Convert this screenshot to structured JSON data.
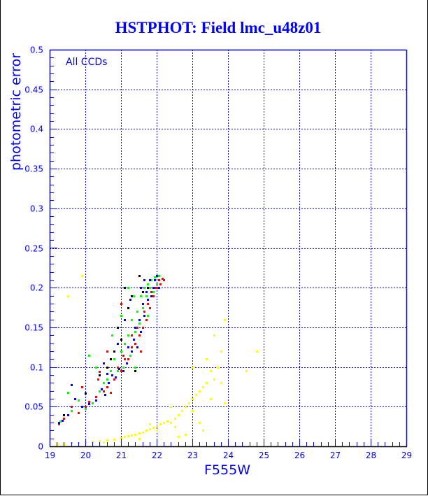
{
  "chart_data": {
    "type": "scatter",
    "title": "HSTPHOT: Field lmc_u48z01",
    "xlabel": "F555W",
    "ylabel": "photometric error",
    "annotation": "All CCDs",
    "xlim": [
      19,
      29
    ],
    "ylim": [
      0,
      0.5
    ],
    "x_ticks": [
      19,
      20,
      21,
      22,
      23,
      24,
      25,
      26,
      27,
      28,
      29
    ],
    "x_tick_labels": [
      "19",
      "20",
      "21",
      "22",
      "23",
      "24",
      "25",
      "26",
      "27",
      "28",
      "29"
    ],
    "y_ticks": [
      0,
      0.05,
      0.1,
      0.15,
      0.2,
      0.25,
      0.3,
      0.35,
      0.4,
      0.45,
      0.5
    ],
    "y_tick_labels": [
      "0",
      "0.05",
      "0.1",
      "0.15",
      "0.2",
      "0.25",
      "0.3",
      "0.35",
      "0.4",
      "0.45",
      "0.5"
    ],
    "grid": true,
    "colors": {
      "axis": "#0000ff",
      "grid": "#0000ff",
      "bottom_axis": "#000000"
    },
    "series": [
      {
        "name": "red",
        "color": "#ff0000",
        "points": [
          [
            19.25,
            0.028
          ],
          [
            19.4,
            0.035
          ],
          [
            19.6,
            0.05
          ],
          [
            19.8,
            0.042
          ],
          [
            20.0,
            0.05
          ],
          [
            20.1,
            0.056
          ],
          [
            20.3,
            0.063
          ],
          [
            20.35,
            0.085
          ],
          [
            20.5,
            0.07
          ],
          [
            20.6,
            0.075
          ],
          [
            20.7,
            0.068
          ],
          [
            20.8,
            0.085
          ],
          [
            20.9,
            0.1
          ],
          [
            21.0,
            0.095
          ],
          [
            21.05,
            0.115
          ],
          [
            21.1,
            0.11
          ],
          [
            21.2,
            0.11
          ],
          [
            21.3,
            0.125
          ],
          [
            21.3,
            0.14
          ],
          [
            21.4,
            0.13
          ],
          [
            21.45,
            0.15
          ],
          [
            21.5,
            0.14
          ],
          [
            21.55,
            0.12
          ],
          [
            21.6,
            0.15
          ],
          [
            21.65,
            0.17
          ],
          [
            21.7,
            0.16
          ],
          [
            21.75,
            0.18
          ],
          [
            21.8,
            0.175
          ],
          [
            21.85,
            0.195
          ],
          [
            21.9,
            0.19
          ],
          [
            21.95,
            0.2
          ],
          [
            22.0,
            0.2
          ],
          [
            22.05,
            0.21
          ],
          [
            22.1,
            0.205
          ],
          [
            22.15,
            0.212
          ],
          [
            22.2,
            0.21
          ],
          [
            21.0,
            0.18
          ],
          [
            20.6,
            0.12
          ],
          [
            19.9,
            0.075
          ],
          [
            20.4,
            0.094
          ]
        ]
      },
      {
        "name": "green",
        "color": "#00ff00",
        "points": [
          [
            19.3,
            0.032
          ],
          [
            19.6,
            0.045
          ],
          [
            19.8,
            0.058
          ],
          [
            20.0,
            0.048
          ],
          [
            20.2,
            0.055
          ],
          [
            20.4,
            0.07
          ],
          [
            20.5,
            0.08
          ],
          [
            20.6,
            0.085
          ],
          [
            20.7,
            0.095
          ],
          [
            20.8,
            0.11
          ],
          [
            20.9,
            0.095
          ],
          [
            21.0,
            0.12
          ],
          [
            21.05,
            0.1
          ],
          [
            21.1,
            0.13
          ],
          [
            21.2,
            0.14
          ],
          [
            21.25,
            0.115
          ],
          [
            21.3,
            0.16
          ],
          [
            21.4,
            0.145
          ],
          [
            21.45,
            0.17
          ],
          [
            21.5,
            0.155
          ],
          [
            21.55,
            0.19
          ],
          [
            21.6,
            0.175
          ],
          [
            21.65,
            0.2
          ],
          [
            21.7,
            0.19
          ],
          [
            21.75,
            0.205
          ],
          [
            21.8,
            0.2
          ],
          [
            21.85,
            0.21
          ],
          [
            21.9,
            0.195
          ],
          [
            21.95,
            0.213
          ],
          [
            22.0,
            0.205
          ],
          [
            22.05,
            0.215
          ],
          [
            21.2,
            0.2
          ],
          [
            20.1,
            0.115
          ],
          [
            20.3,
            0.1
          ],
          [
            19.5,
            0.068
          ],
          [
            21.0,
            0.165
          ],
          [
            21.35,
            0.19
          ],
          [
            20.75,
            0.14
          ],
          [
            21.4,
            0.1
          ],
          [
            21.75,
            0.165
          ]
        ]
      },
      {
        "name": "blue",
        "color": "#0000ff",
        "points": [
          [
            19.25,
            0.03
          ],
          [
            19.35,
            0.033
          ],
          [
            19.5,
            0.04
          ],
          [
            19.7,
            0.06
          ],
          [
            19.9,
            0.05
          ],
          [
            20.1,
            0.054
          ],
          [
            20.3,
            0.058
          ],
          [
            20.45,
            0.072
          ],
          [
            20.55,
            0.065
          ],
          [
            20.65,
            0.08
          ],
          [
            20.75,
            0.09
          ],
          [
            20.85,
            0.087
          ],
          [
            20.95,
            0.098
          ],
          [
            21.05,
            0.095
          ],
          [
            21.15,
            0.105
          ],
          [
            21.2,
            0.125
          ],
          [
            21.3,
            0.12
          ],
          [
            21.35,
            0.135
          ],
          [
            21.4,
            0.15
          ],
          [
            21.45,
            0.125
          ],
          [
            21.5,
            0.16
          ],
          [
            21.55,
            0.145
          ],
          [
            21.6,
            0.18
          ],
          [
            21.65,
            0.165
          ],
          [
            21.7,
            0.195
          ],
          [
            21.75,
            0.185
          ],
          [
            21.8,
            0.21
          ],
          [
            21.85,
            0.19
          ],
          [
            21.9,
            0.2
          ],
          [
            21.95,
            0.21
          ],
          [
            22.0,
            0.215
          ],
          [
            22.05,
            0.2
          ],
          [
            21.1,
            0.16
          ],
          [
            20.9,
            0.13
          ],
          [
            20.5,
            0.105
          ],
          [
            19.6,
            0.078
          ],
          [
            20.6,
            0.092
          ],
          [
            21.55,
            0.2
          ],
          [
            21.25,
            0.185
          ],
          [
            21.65,
            0.21
          ]
        ]
      },
      {
        "name": "black",
        "color": "#000000",
        "points": [
          [
            19.4,
            0.04
          ],
          [
            20.0,
            0.067
          ],
          [
            20.4,
            0.09
          ],
          [
            20.6,
            0.1
          ],
          [
            20.8,
            0.12
          ],
          [
            20.9,
            0.15
          ],
          [
            21.0,
            0.135
          ],
          [
            21.1,
            0.2
          ],
          [
            21.2,
            0.175
          ],
          [
            21.3,
            0.19
          ],
          [
            21.5,
            0.215
          ],
          [
            21.6,
            0.195
          ],
          [
            21.4,
            0.095
          ],
          [
            20.7,
            0.11
          ],
          [
            21.75,
            0.2
          ]
        ]
      },
      {
        "name": "yellow",
        "color": "#ffff00",
        "points": [
          [
            19.2,
            0.003
          ],
          [
            19.4,
            0.003
          ],
          [
            19.6,
            0.004
          ],
          [
            19.8,
            0.004
          ],
          [
            20.0,
            0.005
          ],
          [
            20.2,
            0.006
          ],
          [
            20.4,
            0.007
          ],
          [
            20.6,
            0.008
          ],
          [
            20.8,
            0.009
          ],
          [
            21.0,
            0.011
          ],
          [
            21.1,
            0.012
          ],
          [
            21.2,
            0.013
          ],
          [
            21.3,
            0.014
          ],
          [
            21.4,
            0.015
          ],
          [
            21.5,
            0.017
          ],
          [
            21.6,
            0.018
          ],
          [
            21.7,
            0.02
          ],
          [
            21.8,
            0.022
          ],
          [
            21.9,
            0.024
          ],
          [
            22.0,
            0.026
          ],
          [
            22.1,
            0.028
          ],
          [
            22.2,
            0.03
          ],
          [
            22.3,
            0.032
          ],
          [
            22.4,
            0.03
          ],
          [
            22.5,
            0.035
          ],
          [
            22.6,
            0.04
          ],
          [
            22.7,
            0.045
          ],
          [
            22.8,
            0.05
          ],
          [
            22.9,
            0.055
          ],
          [
            23.0,
            0.06
          ],
          [
            23.1,
            0.065
          ],
          [
            23.2,
            0.07
          ],
          [
            23.3,
            0.075
          ],
          [
            23.4,
            0.08
          ],
          [
            23.5,
            0.095
          ],
          [
            23.6,
            0.085
          ],
          [
            23.7,
            0.1
          ],
          [
            23.8,
            0.12
          ],
          [
            23.9,
            0.16
          ],
          [
            23.0,
            0.045
          ],
          [
            22.5,
            0.025
          ],
          [
            23.2,
            0.03
          ],
          [
            23.5,
            0.06
          ],
          [
            23.8,
            0.08
          ],
          [
            23.6,
            0.14
          ],
          [
            23.3,
            0.02
          ],
          [
            22.8,
            0.015
          ],
          [
            21.5,
            0.01
          ],
          [
            20.5,
            0.005
          ],
          [
            19.5,
            0.19
          ],
          [
            19.9,
            0.215
          ],
          [
            24.8,
            0.12
          ],
          [
            24.5,
            0.095
          ],
          [
            23.9,
            0.055
          ],
          [
            22.0,
            0.02
          ],
          [
            21.8,
            0.028
          ],
          [
            22.6,
            0.012
          ],
          [
            23.0,
            0.1
          ],
          [
            22.4,
            0.05
          ],
          [
            23.4,
            0.11
          ]
        ]
      }
    ]
  }
}
